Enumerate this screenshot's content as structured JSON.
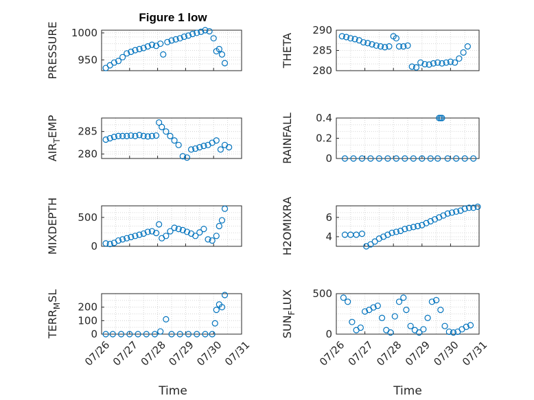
{
  "figure": {
    "title": "Figure 1 low"
  },
  "x_ticks": [
    "07/26",
    "07/27",
    "07/28",
    "07/29",
    "07/30",
    "07/31"
  ],
  "x_label": "Time",
  "marker_color": "#0072BD",
  "chart_data": [
    {
      "type": "scatter",
      "ylabel": "PRESSURE",
      "yticks": [
        950,
        1000
      ],
      "ylim": [
        930,
        1005
      ],
      "xlim": [
        0,
        5
      ],
      "x": [
        0.15,
        0.3,
        0.45,
        0.6,
        0.75,
        0.9,
        1.05,
        1.2,
        1.35,
        1.5,
        1.65,
        1.8,
        1.95,
        2.1,
        2.2,
        2.35,
        2.5,
        2.65,
        2.8,
        2.95,
        3.1,
        3.25,
        3.4,
        3.55,
        3.7,
        3.85,
        4.0,
        4.1,
        4.2,
        4.3,
        4.4
      ],
      "y": [
        935,
        940,
        945,
        948,
        955,
        962,
        965,
        968,
        970,
        972,
        975,
        978,
        976,
        980,
        960,
        983,
        986,
        988,
        990,
        993,
        995,
        998,
        1000,
        1002,
        1005,
        1003,
        990,
        966,
        970,
        960,
        944
      ]
    },
    {
      "type": "scatter",
      "ylabel": "THETA",
      "yticks": [
        280,
        285,
        290
      ],
      "ylim": [
        280,
        290
      ],
      "xlim": [
        0,
        5
      ],
      "x": [
        0.2,
        0.35,
        0.5,
        0.65,
        0.8,
        0.95,
        1.1,
        1.25,
        1.4,
        1.55,
        1.7,
        1.85,
        2.0,
        2.1,
        2.2,
        2.35,
        2.5,
        2.65,
        2.8,
        2.95,
        3.1,
        3.25,
        3.4,
        3.55,
        3.7,
        3.85,
        4.0,
        4.15,
        4.3,
        4.45,
        4.6
      ],
      "y": [
        288.5,
        288.3,
        288,
        287.8,
        287.5,
        287,
        286.8,
        286.5,
        286.2,
        286,
        285.8,
        286,
        288.5,
        288,
        286,
        286,
        286.2,
        281,
        280.8,
        282,
        281.6,
        281.5,
        281.8,
        282,
        281.8,
        282,
        282.2,
        282,
        283,
        284.5,
        286
      ]
    },
    {
      "type": "scatter",
      "ylabel": "AIR_TEMP",
      "yticks": [
        280,
        285
      ],
      "ylim": [
        279,
        288
      ],
      "xlim": [
        0,
        5
      ],
      "x": [
        0.15,
        0.3,
        0.45,
        0.6,
        0.75,
        0.9,
        1.05,
        1.2,
        1.35,
        1.5,
        1.65,
        1.8,
        1.95,
        2.05,
        2.15,
        2.3,
        2.45,
        2.6,
        2.75,
        2.9,
        3.05,
        3.2,
        3.35,
        3.5,
        3.65,
        3.8,
        3.95,
        4.1,
        4.25,
        4.4,
        4.55
      ],
      "y": [
        283.2,
        283.5,
        283.8,
        284,
        284,
        284,
        284.1,
        284,
        284.2,
        284,
        283.9,
        284,
        284.1,
        287,
        286,
        285,
        284,
        283,
        282,
        279.5,
        279.2,
        281,
        281.2,
        281.5,
        281.8,
        282,
        282.5,
        283,
        281,
        282,
        281.5
      ]
    },
    {
      "type": "scatter",
      "ylabel": "RAINFALL",
      "yticks": [
        0,
        0.2,
        0.4
      ],
      "ylim": [
        0,
        0.4
      ],
      "xlim": [
        0,
        5
      ],
      "x": [
        0.3,
        0.6,
        0.9,
        1.2,
        1.5,
        1.8,
        2.1,
        2.4,
        2.7,
        3.0,
        3.3,
        3.55,
        3.6,
        3.65,
        3.7,
        3.9,
        4.2,
        4.5,
        4.8
      ],
      "y": [
        0,
        0,
        0,
        0,
        0,
        0,
        0,
        0,
        0,
        0,
        0,
        0,
        0.4,
        0.4,
        0.4,
        0,
        0,
        0,
        0
      ]
    },
    {
      "type": "scatter",
      "ylabel": "MIXDEPTH",
      "yticks": [
        0,
        500
      ],
      "ylim": [
        0,
        700
      ],
      "xlim": [
        0,
        5
      ],
      "x": [
        0.15,
        0.3,
        0.45,
        0.6,
        0.75,
        0.9,
        1.05,
        1.2,
        1.35,
        1.5,
        1.65,
        1.8,
        1.95,
        2.05,
        2.15,
        2.3,
        2.45,
        2.6,
        2.75,
        2.9,
        3.05,
        3.2,
        3.35,
        3.5,
        3.65,
        3.8,
        3.95,
        4.1,
        4.2,
        4.3,
        4.4
      ],
      "y": [
        50,
        40,
        60,
        100,
        120,
        140,
        160,
        180,
        200,
        220,
        250,
        260,
        230,
        380,
        140,
        180,
        260,
        320,
        300,
        280,
        250,
        220,
        180,
        240,
        300,
        120,
        100,
        180,
        350,
        450,
        650
      ]
    },
    {
      "type": "scatter",
      "ylabel": "H2OMIXRA",
      "yticks": [
        4,
        6
      ],
      "ylim": [
        3,
        7.2
      ],
      "xlim": [
        0,
        5
      ],
      "x": [
        0.3,
        0.5,
        0.7,
        0.9,
        1.05,
        1.2,
        1.35,
        1.5,
        1.65,
        1.8,
        1.95,
        2.1,
        2.25,
        2.4,
        2.55,
        2.7,
        2.85,
        3.0,
        3.15,
        3.3,
        3.45,
        3.6,
        3.75,
        3.9,
        4.05,
        4.2,
        4.35,
        4.5,
        4.65,
        4.8,
        4.95
      ],
      "y": [
        4.2,
        4.2,
        4.2,
        4.3,
        3.0,
        3.2,
        3.5,
        3.8,
        4.0,
        4.2,
        4.4,
        4.5,
        4.6,
        4.8,
        4.9,
        5.0,
        5.1,
        5.2,
        5.4,
        5.6,
        5.8,
        6.0,
        6.2,
        6.4,
        6.5,
        6.6,
        6.7,
        6.9,
        7.0,
        7.0,
        7.1
      ]
    },
    {
      "type": "scatter",
      "ylabel": "TERR_MSL",
      "yticks": [
        0,
        100,
        200
      ],
      "ylim": [
        0,
        300
      ],
      "xlim": [
        0,
        5
      ],
      "x": [
        0.15,
        0.4,
        0.7,
        1.0,
        1.3,
        1.6,
        1.9,
        2.1,
        2.3,
        2.5,
        2.8,
        3.1,
        3.4,
        3.7,
        3.95,
        4.05,
        4.1,
        4.2,
        4.3,
        4.4
      ],
      "y": [
        0,
        0,
        0,
        0,
        0,
        0,
        0,
        20,
        110,
        0,
        0,
        0,
        0,
        0,
        0,
        80,
        180,
        220,
        200,
        290
      ]
    },
    {
      "type": "scatter",
      "ylabel": "SUN_FLUX",
      "yticks": [
        0,
        500
      ],
      "ylim": [
        0,
        500
      ],
      "xlim": [
        0,
        5
      ],
      "x": [
        0.25,
        0.4,
        0.55,
        0.7,
        0.85,
        1.0,
        1.15,
        1.3,
        1.45,
        1.6,
        1.75,
        1.9,
        2.05,
        2.2,
        2.35,
        2.45,
        2.6,
        2.75,
        2.9,
        3.05,
        3.2,
        3.35,
        3.5,
        3.65,
        3.8,
        3.95,
        4.1,
        4.25,
        4.4,
        4.55,
        4.7
      ],
      "y": [
        450,
        400,
        150,
        50,
        80,
        280,
        300,
        330,
        350,
        200,
        50,
        20,
        220,
        400,
        450,
        300,
        100,
        50,
        20,
        60,
        200,
        400,
        420,
        300,
        100,
        30,
        20,
        30,
        60,
        90,
        110
      ]
    }
  ]
}
